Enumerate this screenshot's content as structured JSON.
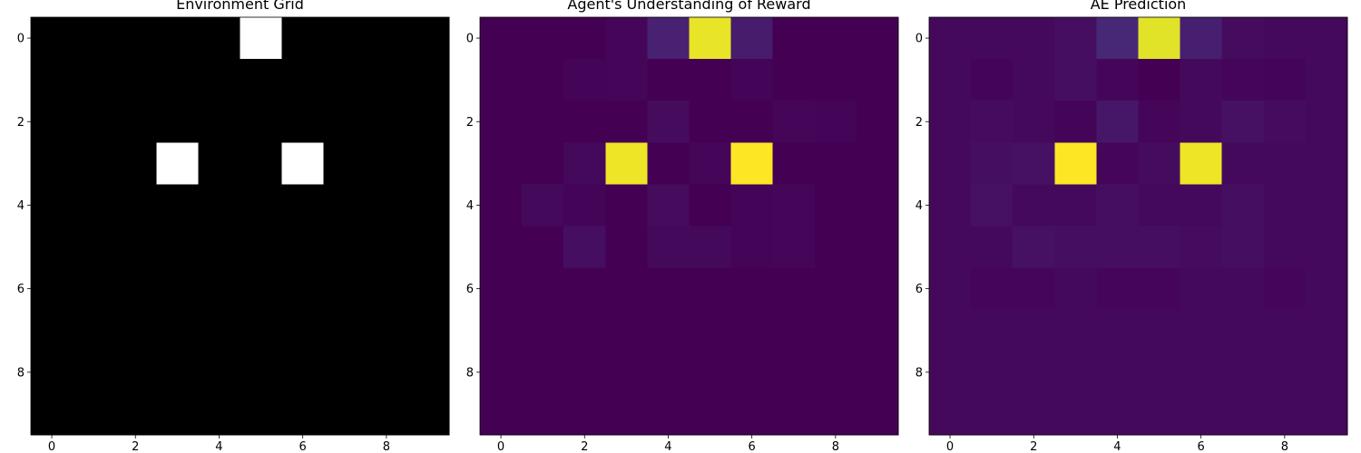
{
  "chart_data": [
    {
      "type": "heatmap",
      "title": "Environment Grid",
      "colormap": "gray",
      "x_ticks": [
        "0",
        "2",
        "4",
        "6",
        "8"
      ],
      "y_ticks": [
        "0",
        "2",
        "4",
        "6",
        "8"
      ],
      "xlim": [
        -0.5,
        9.5
      ],
      "ylim": [
        9.5,
        -0.5
      ],
      "values": [
        [
          0,
          0,
          0,
          0,
          0,
          1,
          0,
          0,
          0,
          0
        ],
        [
          0,
          0,
          0,
          0,
          0,
          0,
          0,
          0,
          0,
          0
        ],
        [
          0,
          0,
          0,
          0,
          0,
          0,
          0,
          0,
          0,
          0
        ],
        [
          0,
          0,
          0,
          1,
          0,
          0,
          1,
          0,
          0,
          0
        ],
        [
          0,
          0,
          0,
          0,
          0,
          0,
          0,
          0,
          0,
          0
        ],
        [
          0,
          0,
          0,
          0,
          0,
          0,
          0,
          0,
          0,
          0
        ],
        [
          0,
          0,
          0,
          0,
          0,
          0,
          0,
          0,
          0,
          0
        ],
        [
          0,
          0,
          0,
          0,
          0,
          0,
          0,
          0,
          0,
          0
        ],
        [
          0,
          0,
          0,
          0,
          0,
          0,
          0,
          0,
          0,
          0
        ],
        [
          0,
          0,
          0,
          0,
          0,
          0,
          0,
          0,
          0,
          0
        ]
      ]
    },
    {
      "type": "heatmap",
      "title": "Agent's Understanding of Reward",
      "colormap": "viridis",
      "x_ticks": [
        "0",
        "2",
        "4",
        "6",
        "8"
      ],
      "y_ticks": [
        "0",
        "2",
        "4",
        "6",
        "8"
      ],
      "xlim": [
        -0.5,
        9.5
      ],
      "ylim": [
        9.5,
        -0.5
      ],
      "values": [
        [
          0.0,
          0.0,
          0.0,
          0.02,
          0.12,
          0.97,
          0.1,
          0.0,
          0.0,
          0.0
        ],
        [
          0.0,
          0.0,
          0.01,
          0.02,
          0.0,
          0.0,
          0.01,
          0.0,
          0.0,
          0.0
        ],
        [
          0.0,
          0.0,
          0.0,
          0.0,
          0.04,
          0.0,
          0.0,
          0.02,
          0.01,
          0.0
        ],
        [
          0.0,
          0.0,
          0.03,
          0.98,
          0.0,
          0.02,
          1.0,
          0.0,
          0.0,
          0.0
        ],
        [
          0.0,
          0.03,
          0.01,
          0.0,
          0.04,
          0.0,
          0.01,
          0.02,
          0.0,
          0.0
        ],
        [
          0.0,
          0.0,
          0.05,
          0.0,
          0.03,
          0.03,
          0.01,
          0.02,
          0.0,
          0.0
        ],
        [
          0.0,
          0.0,
          0.0,
          0.0,
          0.0,
          0.0,
          0.0,
          0.0,
          0.0,
          0.0
        ],
        [
          0.0,
          0.0,
          0.0,
          0.0,
          0.0,
          0.0,
          0.0,
          0.0,
          0.0,
          0.0
        ],
        [
          0.0,
          0.0,
          0.0,
          0.0,
          0.0,
          0.0,
          0.0,
          0.0,
          0.0,
          0.0
        ],
        [
          0.0,
          0.0,
          0.0,
          0.0,
          0.0,
          0.0,
          0.0,
          0.0,
          0.0,
          0.0
        ]
      ]
    },
    {
      "type": "heatmap",
      "title": "AE Prediction",
      "colormap": "viridis",
      "x_ticks": [
        "0",
        "2",
        "4",
        "6",
        "8"
      ],
      "y_ticks": [
        "0",
        "2",
        "4",
        "6",
        "8"
      ],
      "xlim": [
        -0.5,
        9.5
      ],
      "ylim": [
        9.5,
        -0.5
      ],
      "values": [
        [
          0.03,
          0.03,
          0.03,
          0.05,
          0.14,
          0.96,
          0.11,
          0.04,
          0.03,
          0.03
        ],
        [
          0.03,
          0.01,
          0.03,
          0.05,
          0.02,
          0.0,
          0.03,
          0.02,
          0.01,
          0.03
        ],
        [
          0.03,
          0.04,
          0.03,
          0.01,
          0.08,
          0.02,
          0.03,
          0.06,
          0.04,
          0.03
        ],
        [
          0.03,
          0.05,
          0.06,
          1.0,
          0.02,
          0.04,
          0.98,
          0.03,
          0.03,
          0.03
        ],
        [
          0.03,
          0.06,
          0.03,
          0.03,
          0.05,
          0.03,
          0.03,
          0.05,
          0.03,
          0.03
        ],
        [
          0.03,
          0.03,
          0.06,
          0.05,
          0.05,
          0.05,
          0.04,
          0.05,
          0.03,
          0.03
        ],
        [
          0.03,
          0.02,
          0.02,
          0.03,
          0.02,
          0.02,
          0.03,
          0.03,
          0.02,
          0.03
        ],
        [
          0.03,
          0.03,
          0.03,
          0.03,
          0.03,
          0.03,
          0.03,
          0.03,
          0.03,
          0.03
        ],
        [
          0.03,
          0.03,
          0.03,
          0.03,
          0.03,
          0.03,
          0.03,
          0.03,
          0.03,
          0.03
        ],
        [
          0.03,
          0.03,
          0.03,
          0.03,
          0.03,
          0.03,
          0.03,
          0.03,
          0.03,
          0.03
        ]
      ]
    }
  ]
}
